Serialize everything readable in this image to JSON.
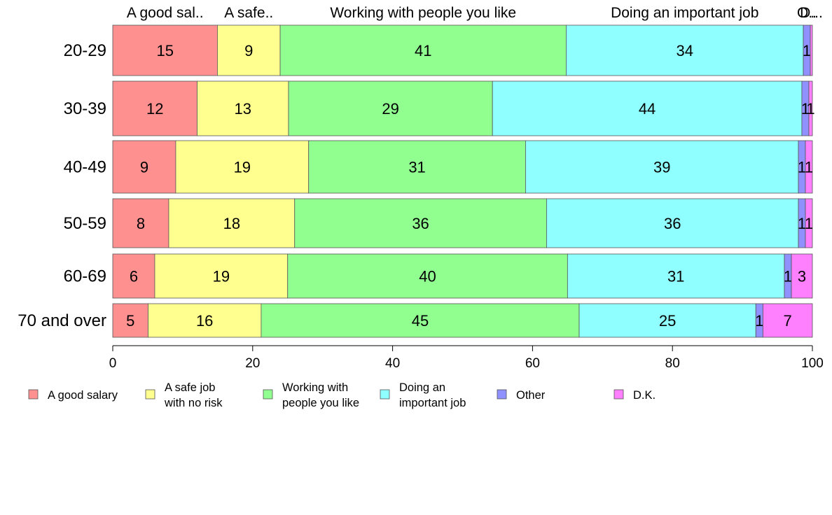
{
  "chart_data": {
    "type": "bar",
    "orientation": "horizontal",
    "stacked": true,
    "categories": [
      "20-29",
      "30-39",
      "40-49",
      "50-59",
      "60-69",
      "70 and over"
    ],
    "series": [
      {
        "name": "A good salary",
        "legend_lines": [
          "A good salary"
        ],
        "top_label": "A good sal..",
        "color": "#ff9090",
        "values": [
          15,
          12,
          9,
          8,
          6,
          5
        ]
      },
      {
        "name": "A safe job with no risk",
        "legend_lines": [
          "A safe job",
          "with no risk"
        ],
        "top_label": "A safe..",
        "color": "#ffff90",
        "values": [
          9,
          13,
          19,
          18,
          19,
          16
        ]
      },
      {
        "name": "Working with people you like",
        "legend_lines": [
          "Working with",
          "people you like"
        ],
        "top_label": "Working with people you like",
        "color": "#90ff90",
        "values": [
          41,
          29,
          31,
          36,
          40,
          45
        ]
      },
      {
        "name": "Doing an important job",
        "legend_lines": [
          "Doing an",
          "important job"
        ],
        "top_label": "Doing an important job",
        "color": "#90ffff",
        "values": [
          34,
          44,
          39,
          36,
          31,
          25
        ]
      },
      {
        "name": "Other",
        "legend_lines": [
          "Other"
        ],
        "top_label": "O..",
        "color": "#9090ff",
        "values": [
          1,
          1,
          1,
          1,
          1,
          1
        ]
      },
      {
        "name": "D.K.",
        "legend_lines": [
          "D.K."
        ],
        "top_label": "D...",
        "color": "#ff80ff",
        "values": [
          0.3,
          0.5,
          1,
          1,
          3,
          7
        ]
      }
    ],
    "segment_labels": [
      [
        "15",
        "9",
        "41",
        "34",
        "1",
        ""
      ],
      [
        "12",
        "13",
        "29",
        "44",
        "1",
        "1"
      ],
      [
        "9",
        "19",
        "31",
        "39",
        "1",
        "1"
      ],
      [
        "8",
        "18",
        "36",
        "36",
        "1",
        "1"
      ],
      [
        "6",
        "19",
        "40",
        "31",
        "1",
        "3"
      ],
      [
        "5",
        "16",
        "45",
        "25",
        "1",
        "7"
      ]
    ],
    "xlim": [
      0,
      100
    ],
    "xticks": [
      "0",
      "20",
      "40",
      "60",
      "80",
      "100"
    ],
    "xlabel": "",
    "ylabel": "",
    "title": "",
    "grid": false,
    "legend_position": "bottom"
  }
}
